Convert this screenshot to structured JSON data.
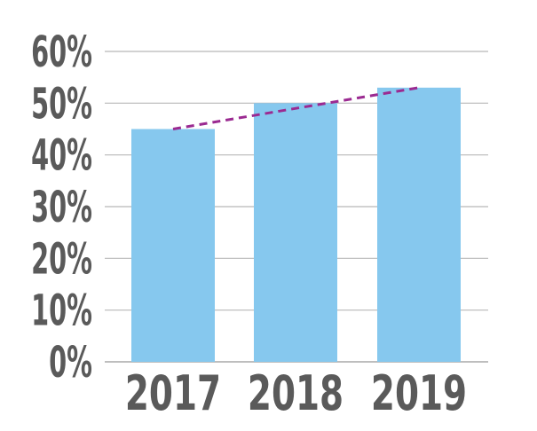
{
  "chart_data": {
    "type": "bar",
    "title": "",
    "xlabel": "",
    "ylabel": "",
    "categories": [
      "2017",
      "2018",
      "2019"
    ],
    "values": [
      45,
      50,
      53
    ],
    "ylim": [
      0,
      60
    ],
    "yticks": [
      "0%",
      "10%",
      "20%",
      "30%",
      "40%",
      "50%",
      "60%"
    ],
    "ytick_values": [
      0,
      10,
      20,
      30,
      40,
      50,
      60
    ],
    "grid": true,
    "legend": "none",
    "trendline": {
      "style": "dashed",
      "from": {
        "category": "2017",
        "value": 45
      },
      "to": {
        "category": "2019",
        "value": 53
      }
    },
    "colors": {
      "bar": "#86c8ee",
      "grid": "#b8b8b8",
      "axis": "#a8a8a8",
      "tick_text": "#5a5a5a",
      "trendline": "#9b2a91"
    }
  }
}
